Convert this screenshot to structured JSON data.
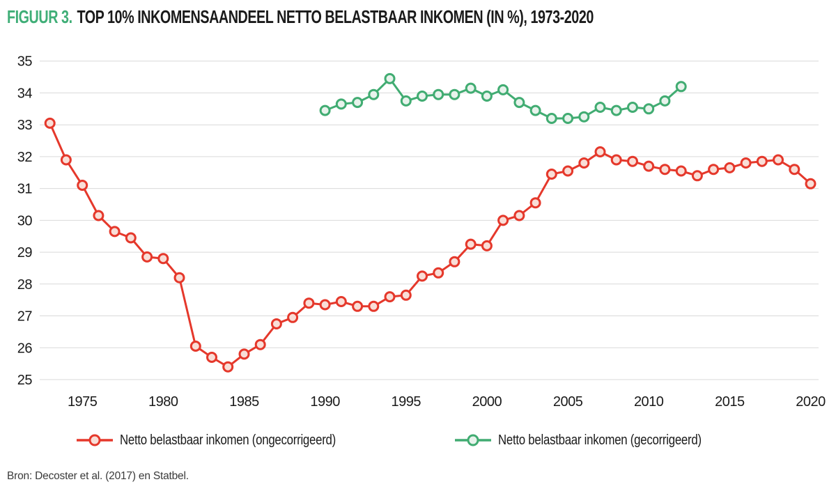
{
  "title": {
    "prefix": "FIGUUR 3.",
    "text": "TOP 10% INKOMENSAANDEEL NETTO BELASTBAAR INKOMEN (IN %), 1973-2020"
  },
  "source": "Bron: Decoster et al. (2017) en Statbel.",
  "colors": {
    "title_accent": "#3fae77",
    "text": "#1a1a1a",
    "grid": "#d9d9d9",
    "source_text": "#3a3a3a",
    "red": "#e5382b",
    "red_marker_fill": "#f9ded7",
    "green": "#41ac72",
    "green_marker_fill": "#e8f3ec"
  },
  "legend": [
    {
      "label": "Netto belastbaar inkomen (ongecorrigeerd)",
      "color": "#e5382b",
      "fill": "#f9ded7"
    },
    {
      "label": "Netto belastbaar inkomen (gecorrigeerd)",
      "color": "#41ac72",
      "fill": "#e8f3ec"
    }
  ],
  "chart_data": {
    "type": "line",
    "title": "TOP 10% INKOMENSAANDEEL NETTO BELASTBAAR INKOMEN (IN %), 1973-2020",
    "xlabel": "",
    "ylabel": "",
    "xlim": [
      1973,
      2020
    ],
    "ylim": [
      25,
      35
    ],
    "x_ticks": [
      1975,
      1980,
      1985,
      1990,
      1995,
      2000,
      2005,
      2010,
      2015,
      2020
    ],
    "y_ticks": [
      25,
      26,
      27,
      28,
      29,
      30,
      31,
      32,
      33,
      34,
      35
    ],
    "grid": "horizontal",
    "legend_position": "bottom",
    "series": [
      {
        "key": "ongecorrigeerd",
        "name": "Netto belastbaar inkomen (ongecorrigeerd)",
        "color": "#e5382b",
        "marker_fill": "#f9ded7",
        "years": [
          1973,
          1974,
          1975,
          1976,
          1977,
          1978,
          1979,
          1980,
          1981,
          1982,
          1983,
          1984,
          1985,
          1986,
          1987,
          1988,
          1989,
          1990,
          1991,
          1992,
          1993,
          1994,
          1995,
          1996,
          1997,
          1998,
          1999,
          2000,
          2001,
          2002,
          2003,
          2004,
          2005,
          2006,
          2007,
          2008,
          2009,
          2010,
          2011,
          2012,
          2013,
          2014,
          2015,
          2016,
          2017,
          2018,
          2019,
          2020
        ],
        "values": [
          33.05,
          31.9,
          31.1,
          30.15,
          29.65,
          29.45,
          28.85,
          28.8,
          28.2,
          26.05,
          25.7,
          25.4,
          25.8,
          26.1,
          26.75,
          26.95,
          27.4,
          27.35,
          27.45,
          27.3,
          27.3,
          27.6,
          27.65,
          28.25,
          28.35,
          28.7,
          29.25,
          29.2,
          30.0,
          30.15,
          30.55,
          31.45,
          31.55,
          31.8,
          32.15,
          31.9,
          31.85,
          31.7,
          31.6,
          31.55,
          31.4,
          31.6,
          31.65,
          31.8,
          31.85,
          31.9,
          31.6,
          31.15
        ]
      },
      {
        "key": "gecorrigeerd",
        "name": "Netto belastbaar inkomen (gecorrigeerd)",
        "color": "#41ac72",
        "marker_fill": "#e8f3ec",
        "years": [
          1990,
          1991,
          1992,
          1993,
          1994,
          1995,
          1996,
          1997,
          1998,
          1999,
          2000,
          2001,
          2002,
          2003,
          2004,
          2005,
          2006,
          2007,
          2008,
          2009,
          2010,
          2011,
          2012
        ],
        "values": [
          33.45,
          33.65,
          33.7,
          33.95,
          34.45,
          33.75,
          33.9,
          33.95,
          33.95,
          34.15,
          33.9,
          34.1,
          33.7,
          33.45,
          33.2,
          33.2,
          33.25,
          33.55,
          33.45,
          33.55,
          33.5,
          33.75,
          34.2
        ]
      }
    ]
  }
}
